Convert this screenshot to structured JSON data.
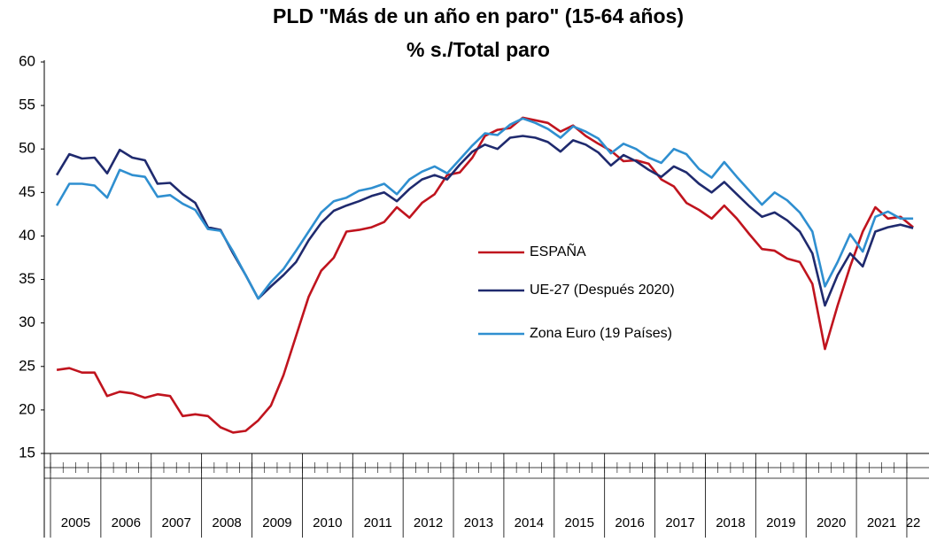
{
  "chart_data": {
    "type": "line",
    "title": "PLD \"Más de un año en paro\" (15-64 años)",
    "subtitle": "% s./Total paro",
    "categories": [
      null,
      null,
      null,
      null,
      null,
      null,
      null,
      null,
      null,
      null,
      null,
      null,
      null,
      null,
      null,
      null,
      null,
      null,
      null,
      null,
      null,
      null,
      null,
      null,
      null,
      null,
      null,
      null,
      null,
      null,
      null,
      null,
      null,
      null,
      null,
      null,
      null,
      null,
      null,
      null,
      null,
      null,
      null,
      null,
      null,
      null,
      null,
      null,
      null,
      null,
      null,
      null,
      null,
      null,
      null,
      null,
      null,
      null,
      null,
      null,
      null,
      null,
      null,
      null,
      null,
      null,
      null,
      null,
      null
    ],
    "x_groups": [
      "2005",
      "2006",
      "2007",
      "2008",
      "2009",
      "2010",
      "2011",
      "2012",
      "2013",
      "2014",
      "2015",
      "2016",
      "2017",
      "2018",
      "2019",
      "2020",
      "2021",
      "22"
    ],
    "ylim": [
      15,
      60
    ],
    "yticks": [
      15,
      20,
      25,
      30,
      35,
      40,
      45,
      50,
      55,
      60
    ],
    "grid": false,
    "series": [
      {
        "name": "ESPAÑA",
        "color": "#c0141e",
        "values": [
          24.6,
          24.8,
          24.3,
          24.3,
          21.6,
          22.1,
          21.9,
          21.4,
          21.8,
          21.6,
          19.3,
          19.5,
          19.3,
          18.0,
          17.4,
          17.6,
          18.8,
          20.5,
          24.0,
          28.5,
          33.0,
          36.0,
          37.5,
          40.5,
          40.7,
          41.0,
          41.6,
          43.3,
          42.1,
          43.8,
          44.8,
          47.0,
          47.3,
          49.0,
          51.5,
          52.2,
          52.4,
          53.6,
          53.3,
          53.0,
          52.0,
          52.7,
          51.5,
          50.6,
          49.8,
          48.6,
          48.7,
          48.3,
          46.5,
          45.7,
          43.8,
          43.0,
          42.0,
          43.5,
          42.0,
          40.2,
          38.5,
          38.3,
          37.4,
          37.0,
          34.5,
          27.0,
          32.0,
          36.5,
          40.5,
          43.3,
          42.0,
          42.2,
          41.0
        ]
      },
      {
        "name": "UE-27 (Después 2020)",
        "color": "#1f2a6e",
        "values": [
          47.0,
          49.4,
          48.9,
          49.0,
          47.2,
          49.9,
          49.0,
          48.7,
          46.0,
          46.1,
          44.8,
          43.8,
          41.0,
          40.7,
          38.0,
          35.5,
          32.8,
          34.2,
          35.5,
          37.0,
          39.5,
          41.5,
          42.9,
          43.5,
          44.0,
          44.6,
          45.0,
          44.0,
          45.4,
          46.5,
          47.0,
          46.5,
          48.2,
          49.7,
          50.5,
          50.0,
          51.3,
          51.5,
          51.3,
          50.8,
          49.7,
          51.0,
          50.5,
          49.6,
          48.1,
          49.3,
          48.6,
          47.6,
          46.8,
          48.0,
          47.3,
          46.0,
          45.0,
          46.2,
          44.8,
          43.4,
          42.2,
          42.7,
          41.8,
          40.5,
          38.0,
          32.0,
          35.5,
          38.0,
          36.5,
          40.5,
          41.0,
          41.3,
          40.9
        ]
      },
      {
        "name": "Zona Euro (19 Países)",
        "color": "#2f8fd0",
        "values": [
          43.5,
          46.0,
          46.0,
          45.8,
          44.4,
          47.6,
          47.0,
          46.8,
          44.5,
          44.7,
          43.7,
          43.0,
          40.8,
          40.6,
          38.2,
          35.5,
          32.8,
          34.7,
          36.2,
          38.3,
          40.5,
          42.7,
          44.0,
          44.4,
          45.2,
          45.5,
          46.0,
          44.8,
          46.5,
          47.4,
          48.0,
          47.2,
          48.8,
          50.4,
          51.8,
          51.6,
          52.8,
          53.5,
          53.0,
          52.3,
          51.3,
          52.6,
          52.0,
          51.2,
          49.5,
          50.6,
          50.0,
          49.0,
          48.4,
          50.0,
          49.4,
          47.7,
          46.7,
          48.5,
          46.8,
          45.2,
          43.6,
          45.0,
          44.1,
          42.7,
          40.5,
          34.2,
          37.0,
          40.2,
          38.2,
          42.2,
          42.8,
          42.0,
          42.0
        ]
      }
    ]
  }
}
